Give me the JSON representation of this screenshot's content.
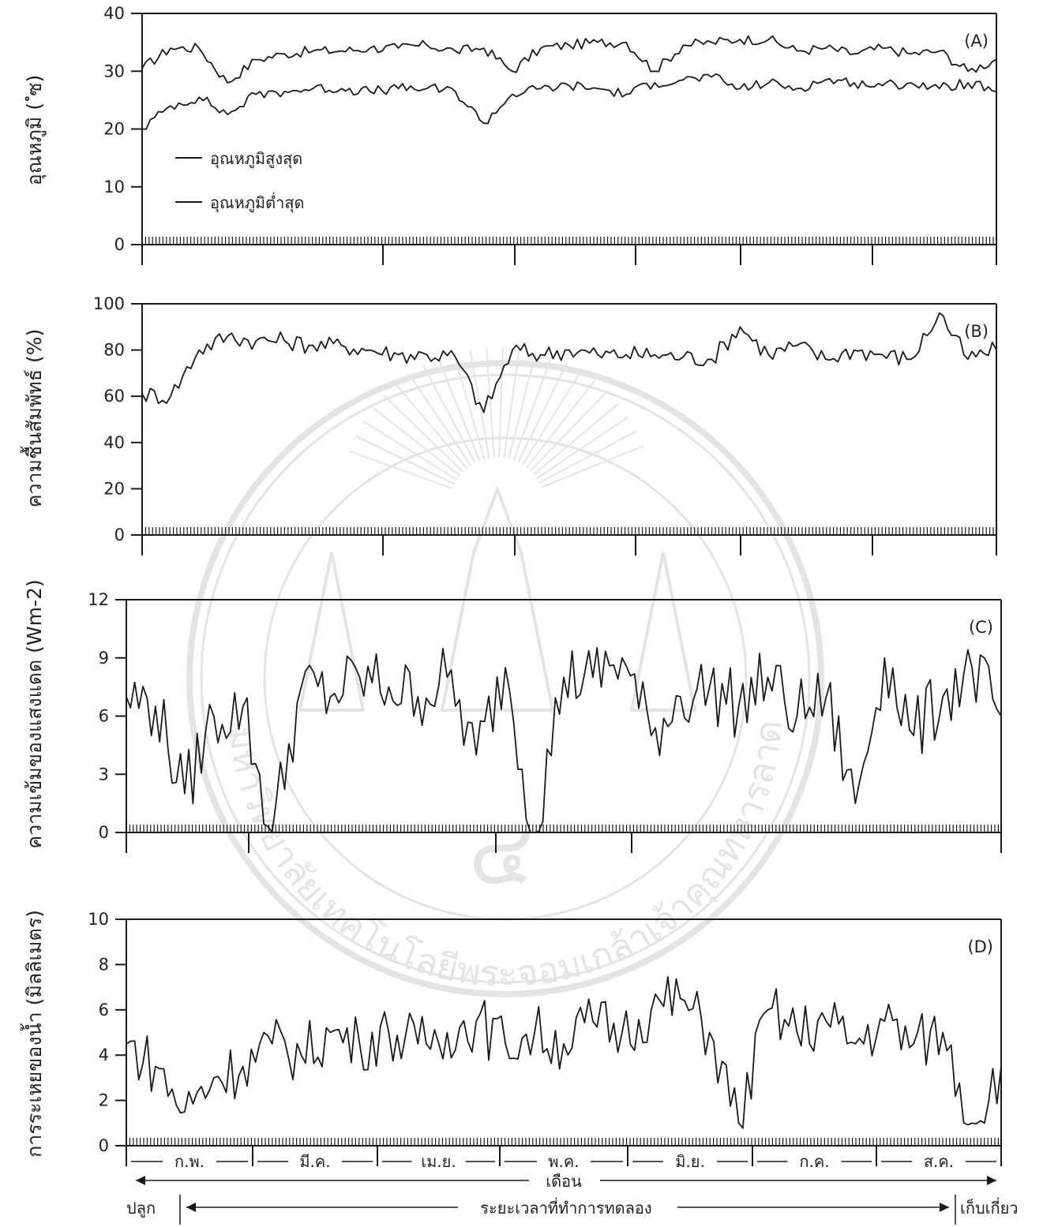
{
  "colors": {
    "line": "#1a1a1a",
    "background": "#ffffff",
    "watermark": "#888888"
  },
  "watermark": {
    "text": "มหาวิทยาลัยเทคโนโลยีพระจอมเกล้าเจ้าคุณทหารลาดกระบัง",
    "digit": "๔"
  },
  "chart_data": [
    {
      "id": "A",
      "type": "line",
      "panel_label": "(A)",
      "ylabel": "อุณหภูมิ ( ํซ)",
      "ylim": [
        0,
        40
      ],
      "yticks": [
        "0",
        "10",
        "20",
        "30",
        "40"
      ],
      "legend": {
        "placement": "center-left",
        "entries": [
          "อุณหภูมิสูงสุด",
          "อุณหภูมิต่ำสุด"
        ]
      },
      "x": [
        0,
        7,
        14,
        21,
        28,
        35,
        42,
        49,
        56,
        63,
        70,
        77,
        84,
        91,
        98,
        105,
        112,
        119,
        126,
        133,
        140,
        147,
        154,
        161,
        168,
        175,
        182,
        189,
        196,
        203,
        210
      ],
      "series": [
        {
          "name": "อุณหภูมิสูงสุด",
          "values": [
            30.5,
            34,
            34,
            28,
            32,
            33,
            33.5,
            33.5,
            34,
            34,
            34.5,
            33.5,
            34,
            30,
            34,
            34.5,
            35,
            35,
            30,
            34.5,
            35,
            35.5,
            35.5,
            33.5,
            34,
            33,
            34,
            33,
            33.5,
            30,
            32
          ]
        },
        {
          "name": "อุณหภูมิต่ำสุด",
          "values": [
            20,
            24,
            25.5,
            22.5,
            26,
            26.5,
            27,
            27,
            26.5,
            27,
            27,
            26.5,
            21,
            26,
            27,
            27.5,
            27,
            26,
            28,
            28.5,
            29,
            27,
            28,
            27,
            28.5,
            28,
            27.5,
            28,
            27,
            28,
            26.5
          ]
        }
      ]
    },
    {
      "id": "B",
      "type": "line",
      "panel_label": "(B)",
      "ylabel": "ความชื้นสัมพัทธ์ (%)",
      "ylim": [
        0,
        100
      ],
      "yticks": [
        "0",
        "20",
        "40",
        "60",
        "80",
        "100"
      ],
      "x": [
        0,
        7,
        14,
        21,
        28,
        35,
        42,
        49,
        56,
        63,
        70,
        77,
        84,
        91,
        98,
        105,
        112,
        119,
        126,
        133,
        140,
        147,
        154,
        161,
        168,
        175,
        182,
        189,
        196,
        203,
        210
      ],
      "values": [
        61,
        60,
        80,
        86,
        84,
        84,
        82,
        82,
        80,
        78,
        78,
        77,
        53,
        80,
        78,
        80,
        78,
        78,
        78,
        77,
        76,
        90,
        78,
        82,
        76,
        80,
        78,
        76,
        96,
        76,
        80
      ]
    },
    {
      "id": "C",
      "type": "line",
      "panel_label": "(C)",
      "ylabel": "ความเข้มของแสงแดด (Wm-2)",
      "ylim": [
        0,
        12
      ],
      "yticks": [
        "0",
        "3",
        "6",
        "9",
        "12"
      ],
      "x": [
        0,
        7,
        14,
        21,
        28,
        35,
        42,
        49,
        56,
        63,
        70,
        77,
        84,
        91,
        98,
        105,
        112,
        119,
        126,
        133,
        140,
        147,
        154,
        161,
        168,
        175,
        182,
        189,
        196,
        203,
        210
      ],
      "values": [
        7,
        6.5,
        2,
        6,
        6.5,
        0,
        7.5,
        7,
        8,
        7.5,
        7,
        8,
        4,
        8.5,
        0,
        8,
        8,
        9,
        5,
        7,
        7.5,
        6.5,
        8,
        6,
        7,
        1.5,
        9,
        5,
        7,
        8.5,
        6
      ]
    },
    {
      "id": "D",
      "type": "line",
      "panel_label": "(D)",
      "ylabel": "การระเหยของน้ำ (มิลลิเมตร)",
      "ylim": [
        0,
        10
      ],
      "yticks": [
        "0",
        "2",
        "4",
        "6",
        "8",
        "10"
      ],
      "xlabel": "เดือน",
      "months": [
        "ก.พ.",
        "มี.ค.",
        "เม.ย.",
        "พ.ค.",
        "มิ.ย.",
        "ก.ค.",
        "ส.ค."
      ],
      "x": [
        0,
        7,
        14,
        21,
        28,
        35,
        42,
        49,
        56,
        63,
        70,
        77,
        84,
        91,
        98,
        105,
        112,
        119,
        126,
        133,
        140,
        147,
        154,
        161,
        168,
        175,
        182,
        189,
        196,
        203,
        210
      ],
      "values": [
        4.5,
        3.5,
        1.5,
        3,
        3.5,
        4.5,
        4,
        5,
        4.5,
        5,
        4.5,
        5,
        5.5,
        4.5,
        5,
        4.5,
        5.5,
        5,
        6,
        6.5,
        5,
        1,
        6,
        5,
        5.5,
        4.5,
        5.5,
        4.5,
        5,
        1,
        3.5
      ]
    }
  ],
  "footer": {
    "start": "ปลูก",
    "period": "ระยะเวลาที่ทำการทดลอง",
    "end": "เก็บเกี่ยว"
  }
}
